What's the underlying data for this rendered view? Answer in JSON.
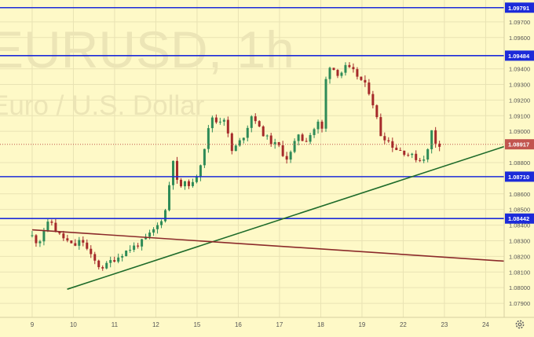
{
  "watermark": {
    "symbol": "EURUSD, 1h",
    "description": "Euro / U.S. Dollar"
  },
  "colors": {
    "background": "#fef9c7",
    "grid": "#e9e3b4",
    "bull": "#2e8b57",
    "bear": "#a52a2a",
    "level_line": "#1c2bd9",
    "uptrend_line": "#1e6b2a",
    "downtrend_line": "#8b2a2a",
    "current_price_bg": "#c2554f",
    "axis_text": "#555555",
    "watermark": "#ece5b6"
  },
  "icons": {
    "settings": "gear-icon"
  },
  "chart_data": {
    "type": "candlestick",
    "symbol": "EURUSD",
    "timeframe": "1h",
    "x_ticks": [
      "9",
      "10",
      "11",
      "12",
      "15",
      "16",
      "17",
      "18",
      "19",
      "22",
      "23",
      "24"
    ],
    "y_ticks": [
      "1.09700",
      "1.09600",
      "1.09400",
      "1.09300",
      "1.09200",
      "1.09100",
      "1.09000",
      "1.08800",
      "1.08600",
      "1.08500",
      "1.08400",
      "1.08300",
      "1.08200",
      "1.08100",
      "1.08000",
      "1.07900"
    ],
    "y_range": [
      1.0781,
      1.0984
    ],
    "x_range": [
      0,
      12
    ],
    "horizontal_levels": [
      {
        "price": 1.09791,
        "label": "1.09791"
      },
      {
        "price": 1.09484,
        "label": "1.09484"
      },
      {
        "price": 1.0871,
        "label": "1.08710"
      },
      {
        "price": 1.08442,
        "label": "1.08442"
      }
    ],
    "current_price": {
      "price": 1.08917,
      "label": "1.08917"
    },
    "trendlines": [
      {
        "name": "uptrend",
        "from": [
          0.85,
          1.0799
        ],
        "to": [
          12.0,
          1.0895
        ]
      },
      {
        "name": "downtrend",
        "from": [
          0.0,
          1.0837
        ],
        "to": [
          12.0,
          1.0816
        ]
      }
    ],
    "price_path": [
      [
        0.0,
        1.0833
      ],
      [
        0.15,
        1.0828
      ],
      [
        0.3,
        1.0838
      ],
      [
        0.45,
        1.0843
      ],
      [
        0.6,
        1.0835
      ],
      [
        0.8,
        1.0831
      ],
      [
        1.0,
        1.0826
      ],
      [
        1.2,
        1.0831
      ],
      [
        1.4,
        1.0821
      ],
      [
        1.6,
        1.0814
      ],
      [
        1.75,
        1.0813
      ],
      [
        1.9,
        1.0817
      ],
      [
        2.05,
        1.0819
      ],
      [
        2.25,
        1.0823
      ],
      [
        2.45,
        1.0826
      ],
      [
        2.65,
        1.0829
      ],
      [
        2.85,
        1.0834
      ],
      [
        3.05,
        1.084
      ],
      [
        3.2,
        1.0847
      ],
      [
        3.3,
        1.0855
      ],
      [
        3.38,
        1.089
      ],
      [
        3.5,
        1.0868
      ],
      [
        3.6,
        1.0865
      ],
      [
        3.75,
        1.0867
      ],
      [
        3.9,
        1.0866
      ],
      [
        4.05,
        1.0876
      ],
      [
        4.2,
        1.0892
      ],
      [
        4.35,
        1.091
      ],
      [
        4.45,
        1.0906
      ],
      [
        4.7,
        1.0909
      ],
      [
        4.8,
        1.0886
      ],
      [
        5.0,
        1.0892
      ],
      [
        5.15,
        1.0898
      ],
      [
        5.35,
        1.0912
      ],
      [
        5.5,
        1.0902
      ],
      [
        5.65,
        1.0897
      ],
      [
        5.8,
        1.0893
      ],
      [
        6.0,
        1.089
      ],
      [
        6.15,
        1.0882
      ],
      [
        6.3,
        1.0887
      ],
      [
        6.45,
        1.0899
      ],
      [
        6.6,
        1.0893
      ],
      [
        6.8,
        1.09
      ],
      [
        6.95,
        1.0906
      ],
      [
        7.05,
        1.09
      ],
      [
        7.15,
        1.0944
      ],
      [
        7.3,
        1.094
      ],
      [
        7.45,
        1.0936
      ],
      [
        7.6,
        1.0941
      ],
      [
        7.8,
        1.0938
      ],
      [
        8.0,
        1.0932
      ],
      [
        8.15,
        1.0927
      ],
      [
        8.3,
        1.0915
      ],
      [
        8.45,
        1.0898
      ],
      [
        8.6,
        1.0895
      ],
      [
        8.8,
        1.0889
      ],
      [
        9.0,
        1.0887
      ],
      [
        9.15,
        1.0885
      ],
      [
        9.3,
        1.0883
      ],
      [
        9.45,
        1.0881
      ],
      [
        9.6,
        1.0888
      ],
      [
        9.68,
        1.0901
      ],
      [
        9.78,
        1.0893
      ],
      [
        9.88,
        1.08917
      ]
    ]
  }
}
